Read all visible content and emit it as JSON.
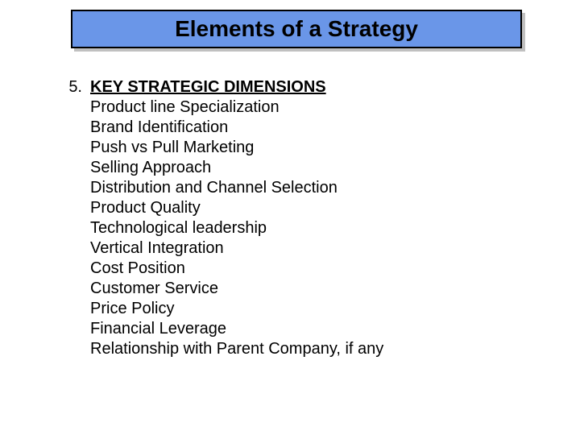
{
  "title": {
    "text": "Elements of a Strategy",
    "bg_color": "#6a96e8",
    "border_color": "#000000",
    "shadow_color": "#c0c0c0",
    "font_size_pt": 28,
    "font_weight": "bold"
  },
  "list": {
    "number": "5.",
    "heading": "KEY STRATEGIC DIMENSIONS",
    "items": [
      "Product line Specialization",
      "Brand Identification",
      "Push vs Pull Marketing",
      "Selling Approach",
      "Distribution and Channel Selection",
      "Product Quality",
      "Technological leadership",
      "Vertical Integration",
      "Cost Position",
      "Customer Service",
      "Price Policy",
      "Financial Leverage",
      "Relationship with Parent Company, if any"
    ],
    "font_size_pt": 20,
    "text_color": "#000000"
  },
  "background_color": "#ffffff"
}
